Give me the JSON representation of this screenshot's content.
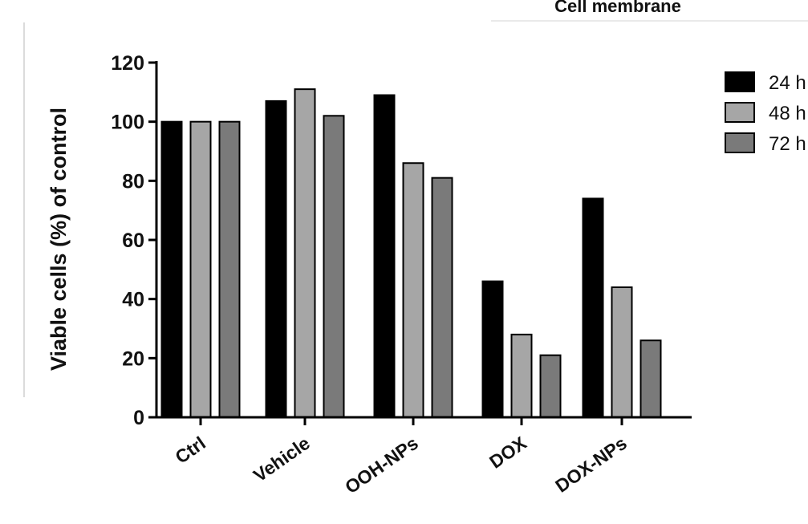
{
  "chart_data": {
    "type": "bar",
    "title": "Cell membrane",
    "xlabel": "",
    "ylabel": "Viable cells (%) of control",
    "ylim": [
      0,
      120
    ],
    "yticks": [
      0,
      20,
      40,
      60,
      80,
      100,
      120
    ],
    "categories": [
      "Ctrl",
      "Vehicle",
      "OOH-NPs",
      "DOX",
      "DOX-NPs"
    ],
    "series": [
      {
        "name": "24 h",
        "values": [
          100,
          107,
          109,
          46,
          74
        ],
        "color": "#000000"
      },
      {
        "name": "48 h",
        "values": [
          100,
          111,
          86,
          28,
          44
        ],
        "color": "#a6a6a6"
      },
      {
        "name": "72 h",
        "values": [
          100,
          102,
          81,
          21,
          26
        ],
        "color": "#7a7a7a"
      }
    ],
    "legend_position": "top-right",
    "grid": false
  }
}
